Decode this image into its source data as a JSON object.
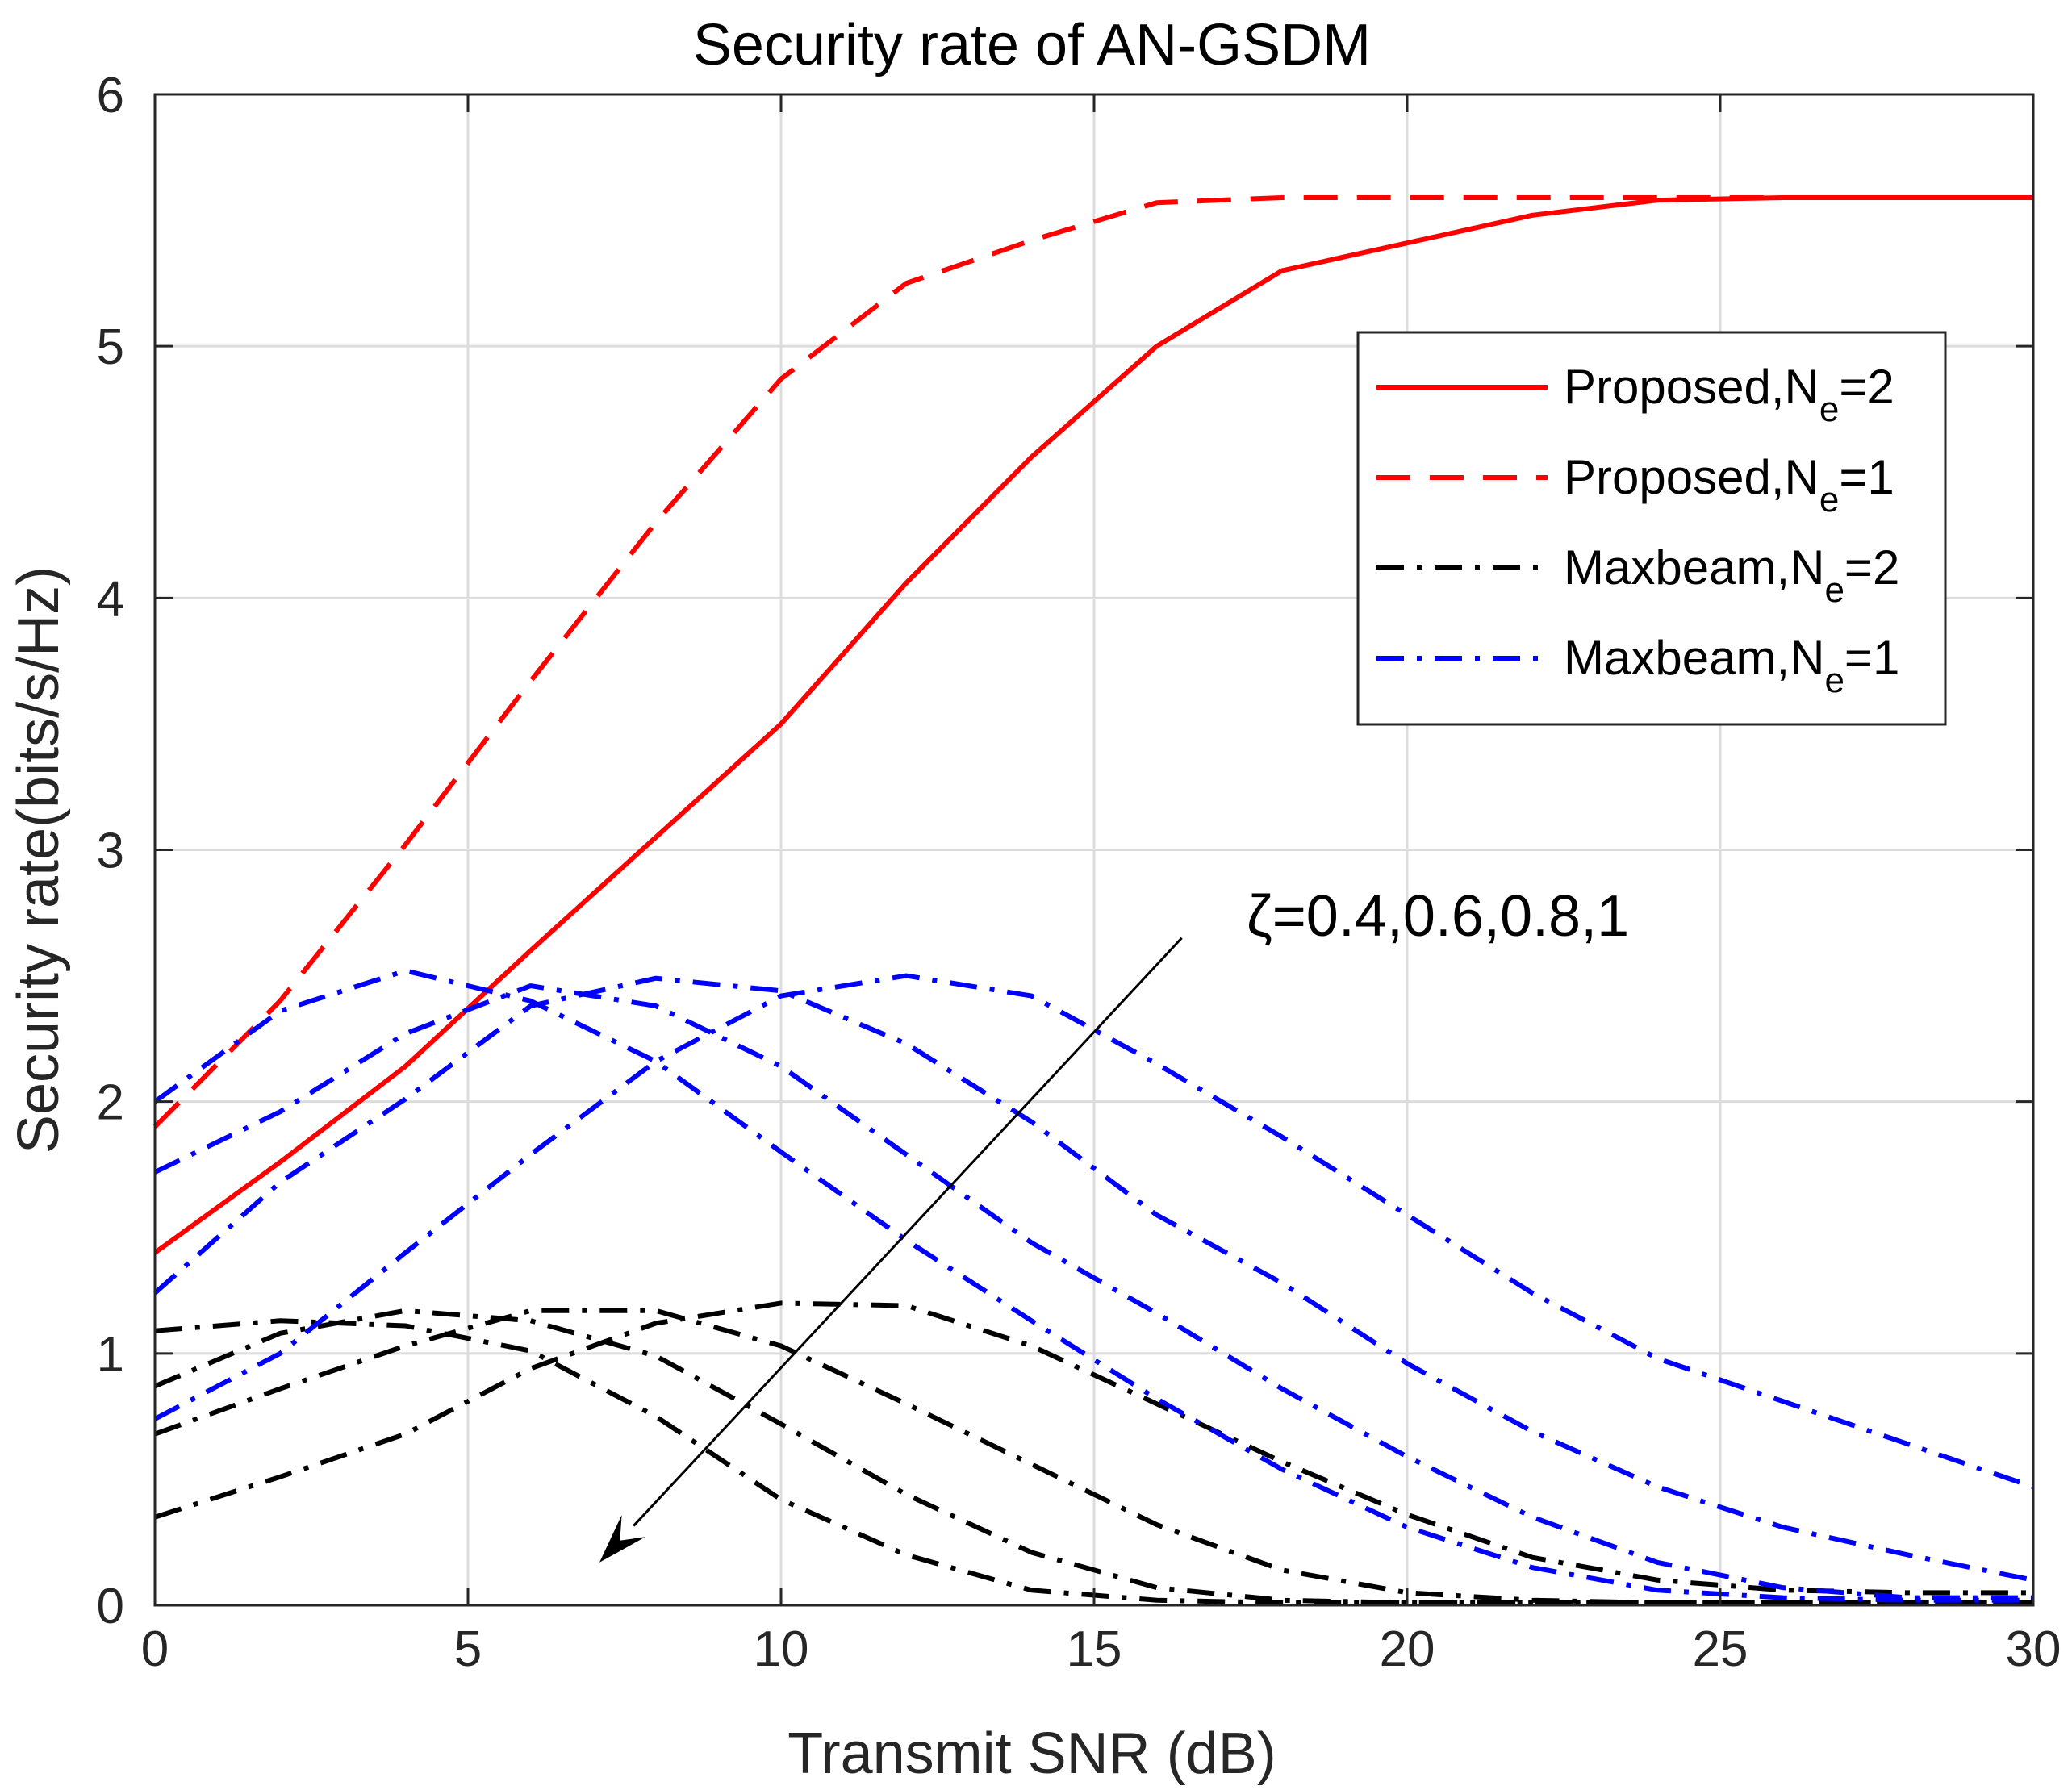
{
  "chart_data": {
    "type": "line",
    "title": "Security rate of AN-GSDM",
    "xlabel": "Transmit SNR (dB)",
    "ylabel": "Security rate(bits/s/Hz)",
    "xlim": [
      0,
      30
    ],
    "ylim": [
      0,
      6
    ],
    "xticks": [
      0,
      5,
      10,
      15,
      20,
      25,
      30
    ],
    "yticks": [
      0,
      1,
      2,
      3,
      4,
      5,
      6
    ],
    "grid": true,
    "legend_position": "upper-right",
    "x": [
      0,
      2,
      4,
      6,
      8,
      10,
      12,
      14,
      16,
      18,
      20,
      22,
      24,
      26,
      28,
      30
    ],
    "series": [
      {
        "name": "Proposed,N_e=2",
        "legend_main": "Proposed,N",
        "legend_sub": "e",
        "legend_tail": "=2",
        "color": "#ff0000",
        "style": "solid",
        "values": [
          1.4,
          1.76,
          2.14,
          2.6,
          3.05,
          3.5,
          4.06,
          4.56,
          5.0,
          5.3,
          5.41,
          5.52,
          5.58,
          5.59,
          5.59,
          5.59
        ]
      },
      {
        "name": "Proposed,N_e=1",
        "legend_main": "Proposed,N",
        "legend_sub": "e",
        "legend_tail": "=1",
        "color": "#ff0000",
        "style": "dashed",
        "values": [
          1.9,
          2.4,
          3.02,
          3.67,
          4.3,
          4.87,
          5.25,
          5.42,
          5.57,
          5.59,
          5.59,
          5.59,
          5.59,
          5.59,
          5.59,
          5.59
        ]
      },
      {
        "name": "Maxbeam,N_e=2 (ζ=0.4)",
        "legend_main": "Maxbeam,N",
        "legend_sub": "e",
        "legend_tail": "=2",
        "color": "#000000",
        "style": "dashdot",
        "values": [
          1.09,
          1.13,
          1.11,
          1.01,
          0.75,
          0.42,
          0.2,
          0.06,
          0.02,
          0.01,
          0.01,
          0.01,
          0.01,
          0.01,
          0.01,
          0.01
        ]
      },
      {
        "name": "Maxbeam,N_e=2 (ζ=0.6)",
        "color": "#000000",
        "style": "dashdot",
        "values": [
          0.87,
          1.08,
          1.17,
          1.13,
          0.99,
          0.72,
          0.44,
          0.21,
          0.07,
          0.02,
          0.01,
          0.01,
          0.01,
          0.01,
          0.01,
          0.01
        ]
      },
      {
        "name": "Maxbeam,N_e=2 (ζ=0.8)",
        "color": "#000000",
        "style": "dashdot",
        "values": [
          0.68,
          0.86,
          1.03,
          1.17,
          1.17,
          1.03,
          0.8,
          0.56,
          0.32,
          0.14,
          0.05,
          0.02,
          0.01,
          0.01,
          0.01,
          0.01
        ]
      },
      {
        "name": "Maxbeam,N_e=2 (ζ=1)",
        "color": "#000000",
        "style": "dashdot",
        "values": [
          0.35,
          0.51,
          0.68,
          0.94,
          1.12,
          1.2,
          1.19,
          1.03,
          0.8,
          0.57,
          0.36,
          0.19,
          0.1,
          0.06,
          0.05,
          0.05
        ]
      },
      {
        "name": "Maxbeam,N_e=1 (ζ=0.4)",
        "legend_main": "Maxbeam,N",
        "legend_sub": "e",
        "legend_tail": "=1",
        "color": "#0000ff",
        "style": "dashdot",
        "values": [
          2.0,
          2.36,
          2.52,
          2.4,
          2.16,
          1.8,
          1.45,
          1.13,
          0.82,
          0.54,
          0.31,
          0.15,
          0.06,
          0.03,
          0.02,
          0.02
        ]
      },
      {
        "name": "Maxbeam,N_e=1 (ζ=0.6)",
        "color": "#0000ff",
        "style": "dashdot",
        "values": [
          1.72,
          1.96,
          2.27,
          2.46,
          2.38,
          2.14,
          1.79,
          1.44,
          1.16,
          0.86,
          0.59,
          0.35,
          0.17,
          0.07,
          0.03,
          0.03
        ]
      },
      {
        "name": "Maxbeam,N_e=1 (ζ=0.8)",
        "color": "#0000ff",
        "style": "dashdot",
        "values": [
          1.24,
          1.68,
          2.01,
          2.38,
          2.49,
          2.44,
          2.23,
          1.92,
          1.55,
          1.28,
          0.96,
          0.69,
          0.47,
          0.31,
          0.2,
          0.1
        ]
      },
      {
        "name": "Maxbeam,N_e=1 (ζ=1)",
        "color": "#0000ff",
        "style": "dashdot",
        "values": [
          0.74,
          1.0,
          1.4,
          1.79,
          2.16,
          2.42,
          2.5,
          2.42,
          2.15,
          1.86,
          1.55,
          1.24,
          0.98,
          0.81,
          0.64,
          0.47
        ]
      }
    ],
    "annotation": {
      "text": "ζ=0.4,0.6,0.8,1",
      "arrow_from": [
        16.4,
        2.65
      ],
      "arrow_to": [
        7.1,
        0.17
      ]
    }
  }
}
